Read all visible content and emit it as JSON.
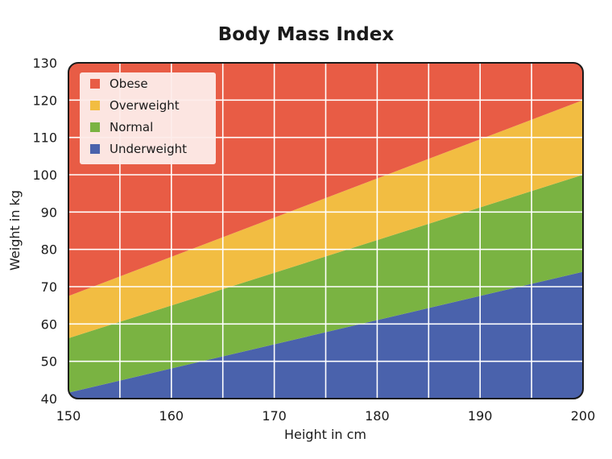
{
  "chart_data": {
    "type": "area",
    "title": "Body Mass Index",
    "xlabel": "Height in cm",
    "ylabel": "Weight in kg",
    "xlim": [
      150,
      200
    ],
    "ylim": [
      40,
      130
    ],
    "x_ticks": [
      150,
      160,
      170,
      180,
      190,
      200
    ],
    "y_ticks": [
      40,
      50,
      60,
      70,
      80,
      90,
      100,
      110,
      120,
      130
    ],
    "grid": true,
    "legend_position": "top-left",
    "x": [
      150,
      200
    ],
    "series": [
      {
        "name": "Underweight",
        "color": "#4a62ac",
        "lower": [
          40,
          40
        ],
        "upper": [
          41.6,
          74
        ]
      },
      {
        "name": "Normal",
        "color": "#7ab342",
        "lower": [
          41.6,
          74
        ],
        "upper": [
          56.2,
          100
        ]
      },
      {
        "name": "Overweight",
        "color": "#f2bd42",
        "lower": [
          56.2,
          100
        ],
        "upper": [
          67.5,
          120
        ]
      },
      {
        "name": "Obese",
        "color": "#e85c45",
        "lower": [
          67.5,
          120
        ],
        "upper": [
          130,
          130
        ]
      }
    ],
    "legend_order": [
      "Obese",
      "Overweight",
      "Normal",
      "Underweight"
    ]
  }
}
